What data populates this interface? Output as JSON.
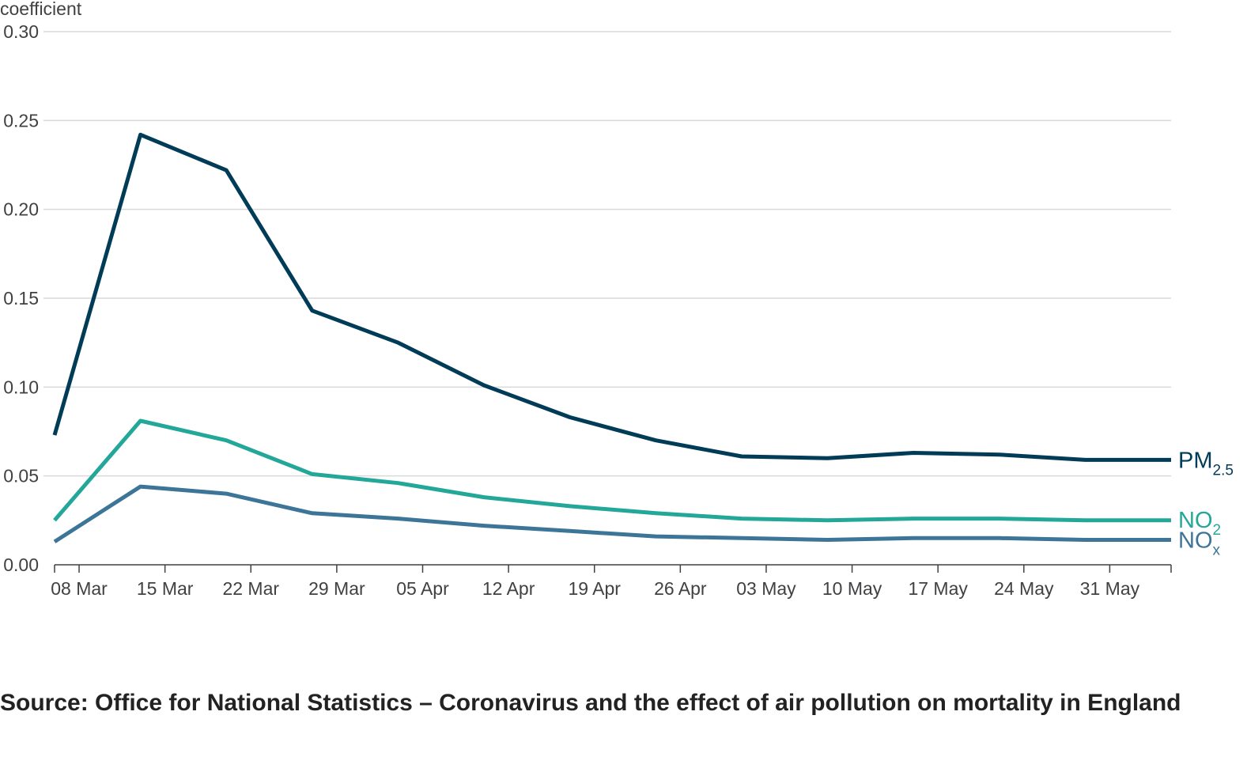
{
  "chart_data": {
    "type": "line",
    "ylabel": "coefficient",
    "ylim": [
      0,
      0.3
    ],
    "yticks": [
      "0.00",
      "0.05",
      "0.10",
      "0.15",
      "0.20",
      "0.25",
      "0.30"
    ],
    "xtick_labels": [
      "08 Mar",
      "15 Mar",
      "22 Mar",
      "29 Mar",
      "05 Apr",
      "12 Apr",
      "19 Apr",
      "26 Apr",
      "03 May",
      "10 May",
      "17 May",
      "24 May",
      "31 May"
    ],
    "grid": true,
    "legend": "inline at line ends (right)",
    "x": [
      "2020-03-06",
      "2020-03-13",
      "2020-03-20",
      "2020-03-27",
      "2020-04-03",
      "2020-04-10",
      "2020-04-17",
      "2020-04-24",
      "2020-05-01",
      "2020-05-08",
      "2020-05-15",
      "2020-05-22",
      "2020-05-29",
      "2020-06-05"
    ],
    "series": [
      {
        "name": "PM2.5",
        "name_main": "PM",
        "name_sub": "2.5",
        "color": "#003c57",
        "values": [
          0.073,
          0.242,
          0.222,
          0.143,
          0.125,
          0.101,
          0.083,
          0.07,
          0.061,
          0.06,
          0.063,
          0.062,
          0.059,
          0.059
        ]
      },
      {
        "name": "NO2",
        "name_main": "NO",
        "name_sub": "2",
        "color": "#22a799",
        "values": [
          0.025,
          0.081,
          0.07,
          0.051,
          0.046,
          0.038,
          0.033,
          0.029,
          0.026,
          0.025,
          0.026,
          0.026,
          0.025,
          0.025
        ]
      },
      {
        "name": "NOx",
        "name_main": "NO",
        "name_sub": "x",
        "color": "#3c7598",
        "values": [
          0.013,
          0.044,
          0.04,
          0.029,
          0.026,
          0.022,
          0.019,
          0.016,
          0.015,
          0.014,
          0.015,
          0.015,
          0.014,
          0.014
        ]
      }
    ]
  },
  "source": "Source: Office for National Statistics – Coronavirus and the effect of air pollution on mortality in England"
}
